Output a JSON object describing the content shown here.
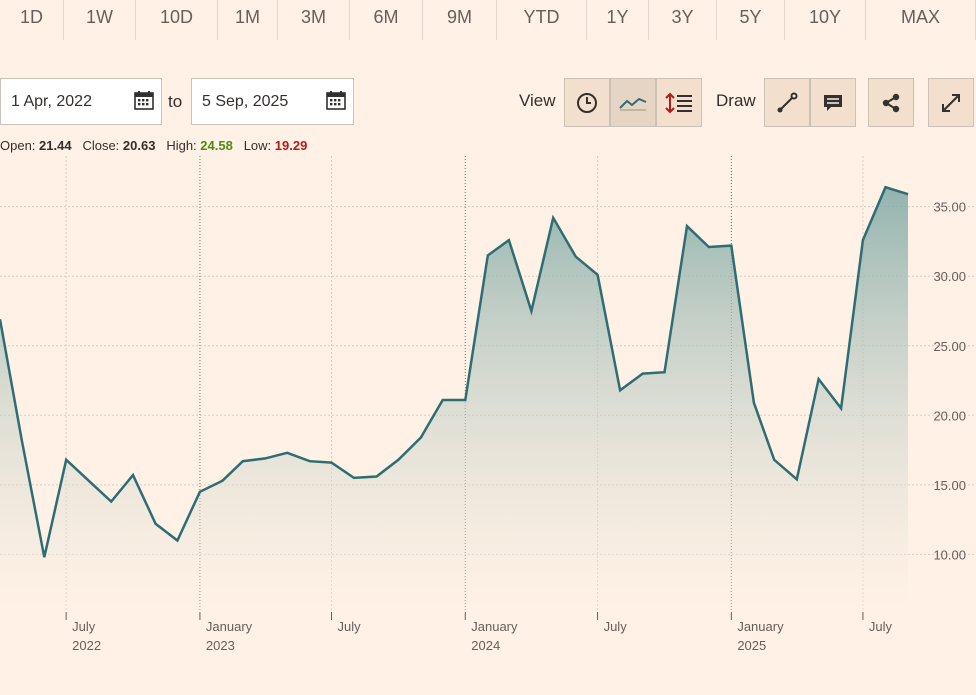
{
  "tabs": [
    "1D",
    "1W",
    "10D",
    "1M",
    "3M",
    "6M",
    "9M",
    "YTD",
    "1Y",
    "3Y",
    "5Y",
    "10Y",
    "MAX"
  ],
  "range": {
    "from": "1 Apr, 2022",
    "to_label": "to",
    "to": "5 Sep, 2025"
  },
  "controls": {
    "view_label": "View",
    "draw_label": "Draw"
  },
  "ohlc": {
    "open_label": "Open:",
    "open": "21.44",
    "close_label": "Close:",
    "close": "20.63",
    "high_label": "High:",
    "high": "24.58",
    "low_label": "Low:",
    "low": "19.29"
  },
  "icons": [
    "calendar-icon",
    "clock-icon",
    "line-chart-icon",
    "indicators-icon",
    "draw-line-icon",
    "comment-icon",
    "share-icon",
    "expand-icon"
  ],
  "colors": {
    "background": "#fff1e5",
    "line": "#2e6d72",
    "high": "#4f8a10",
    "low": "#b31b1b"
  },
  "chart_data": {
    "type": "area",
    "x": [
      "2022-04-01",
      "2022-05-01",
      "2022-06-01",
      "2022-07-01",
      "2022-08-01",
      "2022-09-01",
      "2022-10-01",
      "2022-11-01",
      "2022-12-01",
      "2023-01-01",
      "2023-02-01",
      "2023-03-01",
      "2023-04-01",
      "2023-05-01",
      "2023-06-01",
      "2023-07-01",
      "2023-08-01",
      "2023-09-01",
      "2023-10-01",
      "2023-11-01",
      "2023-12-01",
      "2024-01-01",
      "2024-02-01",
      "2024-03-01",
      "2024-04-01",
      "2024-05-01",
      "2024-06-01",
      "2024-07-01",
      "2024-08-01",
      "2024-09-01",
      "2024-10-01",
      "2024-11-01",
      "2024-12-01",
      "2025-01-01",
      "2025-02-01",
      "2025-03-01",
      "2025-04-01",
      "2025-05-01",
      "2025-06-01",
      "2025-07-01",
      "2025-08-01",
      "2025-09-01"
    ],
    "values": [
      26.9,
      18.2,
      9.8,
      16.8,
      15.3,
      13.8,
      15.7,
      12.2,
      11.0,
      14.5,
      15.3,
      16.7,
      16.9,
      17.3,
      16.7,
      16.6,
      15.5,
      15.6,
      16.8,
      18.4,
      21.1,
      21.1,
      31.5,
      32.6,
      27.5,
      34.2,
      31.4,
      30.1,
      21.8,
      23.0,
      23.1,
      33.6,
      32.1,
      32.2,
      20.9,
      16.8,
      15.4,
      22.6,
      20.5,
      32.6,
      36.4,
      35.9
    ],
    "ylim": [
      6.0,
      38.5
    ],
    "yticks": [
      "10.00",
      "15.00",
      "20.00",
      "25.00",
      "30.00",
      "35.00"
    ],
    "x_ticks": [
      {
        "label": "July",
        "sub": "2022"
      },
      {
        "label": "January",
        "sub": "2023"
      },
      {
        "label": "July",
        "sub": ""
      },
      {
        "label": "January",
        "sub": "2024"
      },
      {
        "label": "July",
        "sub": ""
      },
      {
        "label": "January",
        "sub": "2025"
      },
      {
        "label": "July",
        "sub": ""
      }
    ],
    "x_tick_dates": [
      "2022-07-01",
      "2023-01-01",
      "2023-07-01",
      "2024-01-01",
      "2024-07-01",
      "2025-01-01",
      "2025-07-01"
    ],
    "grid": true
  }
}
